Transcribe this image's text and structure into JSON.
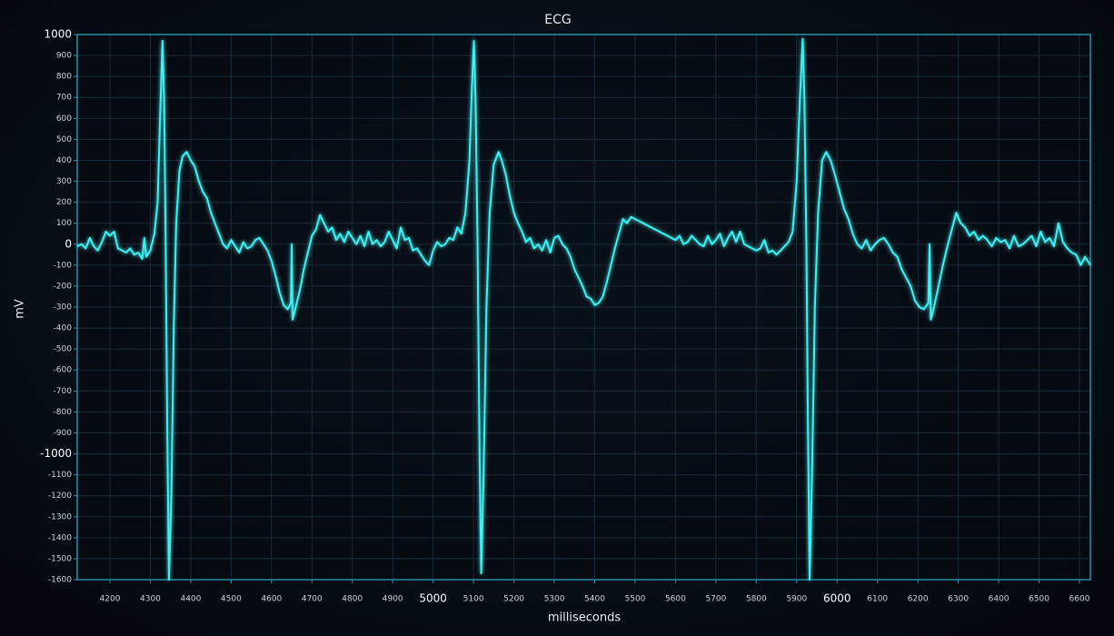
{
  "chart_data": {
    "type": "line",
    "title": "ECG",
    "xlabel": "milliseconds",
    "ylabel": "mV",
    "color": "#3ff0f0",
    "grid": true,
    "xlim": [
      4119,
      6627
    ],
    "xticks": [
      4200,
      4300,
      4400,
      4500,
      4600,
      4700,
      4800,
      4900,
      5000,
      5100,
      5200,
      5300,
      5400,
      5500,
      5600,
      5700,
      5800,
      5900,
      6000,
      6100,
      6200,
      6300,
      6400,
      6500,
      6600
    ],
    "ylim": [
      -1600,
      1000
    ],
    "yticks": [
      -1600,
      -1500,
      -1400,
      -1300,
      -1200,
      -1100,
      -1000,
      -900,
      -800,
      -700,
      -600,
      -500,
      -400,
      -300,
      -200,
      -100,
      0,
      100,
      200,
      300,
      400,
      500,
      600,
      700,
      800,
      900,
      1000
    ],
    "x": [
      4119,
      4130,
      4140,
      4150,
      4160,
      4170,
      4180,
      4190,
      4200,
      4210,
      4220,
      4230,
      4240,
      4250,
      4260,
      4270,
      4280,
      4285,
      4290,
      4300,
      4310,
      4318,
      4324,
      4330,
      4334,
      4338,
      4342,
      4346,
      4352,
      4358,
      4364,
      4372,
      4380,
      4390,
      4400,
      4410,
      4420,
      4430,
      4440,
      4450,
      4460,
      4470,
      4480,
      4490,
      4500,
      4510,
      4520,
      4530,
      4540,
      4550,
      4560,
      4570,
      4580,
      4590,
      4600,
      4610,
      4620,
      4630,
      4640,
      4648,
      4650,
      4652,
      4660,
      4670,
      4680,
      4690,
      4700,
      4710,
      4720,
      4730,
      4740,
      4750,
      4760,
      4770,
      4780,
      4790,
      4800,
      4810,
      4820,
      4830,
      4840,
      4850,
      4860,
      4870,
      4880,
      4890,
      4900,
      4910,
      4920,
      4930,
      4940,
      4950,
      4960,
      4970,
      4980,
      4990,
      5000,
      5010,
      5020,
      5030,
      5040,
      5050,
      5060,
      5070,
      5080,
      5090,
      5096,
      5101,
      5105,
      5110,
      5115,
      5119,
      5125,
      5132,
      5140,
      5150,
      5162,
      5170,
      5180,
      5190,
      5200,
      5210,
      5220,
      5230,
      5240,
      5250,
      5260,
      5270,
      5280,
      5290,
      5300,
      5310,
      5320,
      5330,
      5340,
      5350,
      5360,
      5370,
      5380,
      5390,
      5400,
      5410,
      5420,
      5430,
      5440,
      5450,
      5460,
      5470,
      5480,
      5490,
      5500,
      5510,
      5520,
      5530,
      5540,
      5550,
      5560,
      5570,
      5580,
      5590,
      5600,
      5610,
      5620,
      5630,
      5640,
      5650,
      5660,
      5670,
      5680,
      5690,
      5700,
      5710,
      5720,
      5730,
      5740,
      5750,
      5760,
      5770,
      5780,
      5790,
      5800,
      5810,
      5820,
      5830,
      5840,
      5850,
      5860,
      5870,
      5880,
      5890,
      5900,
      5908,
      5915,
      5919,
      5924,
      5928,
      5932,
      5938,
      5945,
      5953,
      5963,
      5973,
      5984,
      5995,
      6006,
      6017,
      6028,
      6039,
      6050,
      6061,
      6072,
      6083,
      6094,
      6105,
      6116,
      6127,
      6138,
      6149,
      6160,
      6171,
      6182,
      6193,
      6204,
      6215,
      6226,
      6229,
      6232,
      6240,
      6251,
      6262,
      6273,
      6284,
      6295,
      6306,
      6317,
      6328,
      6339,
      6350,
      6361,
      6372,
      6383,
      6394,
      6405,
      6416,
      6427,
      6438,
      6449,
      6460,
      6471,
      6482,
      6493,
      6504,
      6515,
      6526,
      6537,
      6548,
      6559,
      6570,
      6581,
      6592,
      6603,
      6614,
      6627
    ],
    "values": [
      -10,
      0,
      -20,
      30,
      -10,
      -30,
      10,
      60,
      40,
      60,
      -20,
      -30,
      -40,
      -20,
      -50,
      -40,
      -70,
      30,
      -60,
      -30,
      50,
      200,
      600,
      970,
      700,
      0,
      -900,
      -1600,
      -1200,
      -400,
      100,
      350,
      420,
      440,
      400,
      370,
      300,
      250,
      220,
      150,
      100,
      50,
      0,
      -20,
      20,
      -10,
      -40,
      10,
      -20,
      -10,
      20,
      30,
      0,
      -30,
      -80,
      -150,
      -230,
      -290,
      -310,
      -280,
      0,
      -360,
      -300,
      -220,
      -120,
      -40,
      40,
      70,
      140,
      100,
      60,
      80,
      20,
      50,
      10,
      60,
      30,
      0,
      40,
      -10,
      60,
      0,
      20,
      -10,
      10,
      60,
      20,
      -20,
      80,
      20,
      30,
      -30,
      -20,
      -50,
      -80,
      -100,
      -30,
      10,
      -10,
      0,
      30,
      20,
      80,
      50,
      150,
      400,
      750,
      970,
      700,
      0,
      -1000,
      -1570,
      -1100,
      -300,
      150,
      380,
      440,
      400,
      330,
      230,
      150,
      100,
      60,
      10,
      30,
      -20,
      0,
      -30,
      20,
      -40,
      30,
      40,
      0,
      -20,
      -60,
      -120,
      -160,
      -200,
      -250,
      -260,
      -290,
      -280,
      -250,
      -180,
      -100,
      -20,
      50,
      120,
      100,
      130,
      120,
      110,
      100,
      90,
      80,
      70,
      60,
      50,
      40,
      30,
      20,
      40,
      0,
      10,
      40,
      20,
      0,
      -10,
      40,
      0,
      20,
      50,
      -10,
      30,
      60,
      10,
      60,
      0,
      -10,
      -20,
      -30,
      -20,
      20,
      -40,
      -30,
      -50,
      -30,
      -10,
      10,
      60,
      300,
      700,
      980,
      700,
      0,
      -900,
      -1600,
      -1100,
      -300,
      150,
      400,
      440,
      400,
      330,
      250,
      170,
      120,
      50,
      0,
      -20,
      20,
      -30,
      0,
      20,
      30,
      0,
      -40,
      -60,
      -120,
      -160,
      -200,
      -270,
      -300,
      -310,
      -280,
      0,
      -360,
      -300,
      -200,
      -100,
      -10,
      70,
      150,
      100,
      80,
      40,
      60,
      20,
      40,
      20,
      -10,
      30,
      10,
      20,
      -20,
      40,
      -10,
      0,
      20,
      40,
      -10,
      60,
      10,
      30,
      -10,
      100,
      10,
      -20,
      -40,
      -50,
      -100,
      -60,
      -100
    ]
  }
}
